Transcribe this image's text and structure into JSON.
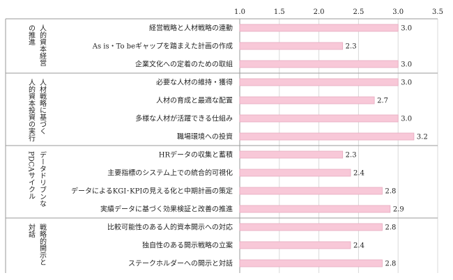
{
  "chart_data": {
    "type": "bar",
    "orientation": "horizontal",
    "xlim": [
      1.0,
      3.5
    ],
    "x_ticks": [
      "1.0",
      "1.5",
      "2.0",
      "2.5",
      "3.0",
      "3.5"
    ],
    "x_tick_values": [
      1.0,
      1.5,
      2.0,
      2.5,
      3.0,
      3.5
    ],
    "grid": true,
    "bar_color": "#f8c8d8",
    "bar_edge_color": "#e6a9be",
    "groups": [
      {
        "label_lines": [
          "人的資本経営",
          "の推進"
        ],
        "items": [
          {
            "label": "経営戦略と人材戦略の連動",
            "value": 3.0
          },
          {
            "label": "As is・To beギャップを踏まえた計画の作成",
            "value": 2.3
          },
          {
            "label": "企業文化への定着のための取組",
            "value": 3.0
          }
        ]
      },
      {
        "label_lines": [
          "人材戦略に基づく",
          "人的資本投資の実行"
        ],
        "items": [
          {
            "label": "必要な人材の維持・獲得",
            "value": 3.0
          },
          {
            "label": "人材の育成と最適な配置",
            "value": 2.7
          },
          {
            "label": "多様な人材が活躍できる仕組み",
            "value": 3.0
          },
          {
            "label": "職場環境への投資",
            "value": 3.2
          }
        ]
      },
      {
        "label_lines": [
          "データドリブンな",
          "PDCAサイクル"
        ],
        "items": [
          {
            "label": "HRデータの収集と蓄積",
            "value": 2.3
          },
          {
            "label": "主要指標のシステム上での統合的可視化",
            "value": 2.4
          },
          {
            "label": "データによるKGI･KPIの見える化と中期計画の策定",
            "value": 2.8
          },
          {
            "label": "実績データに基づく効果検証と改善の推進",
            "value": 2.9
          }
        ]
      },
      {
        "label_lines": [
          "戦略的開示と",
          "対話"
        ],
        "items": [
          {
            "label": "比較可能性のある人的資本開示への対応",
            "value": 2.8
          },
          {
            "label": "独自性のある開示戦略の立案",
            "value": 2.4
          },
          {
            "label": "ステークホルダーへの開示と対話",
            "value": 2.8
          }
        ]
      }
    ]
  }
}
